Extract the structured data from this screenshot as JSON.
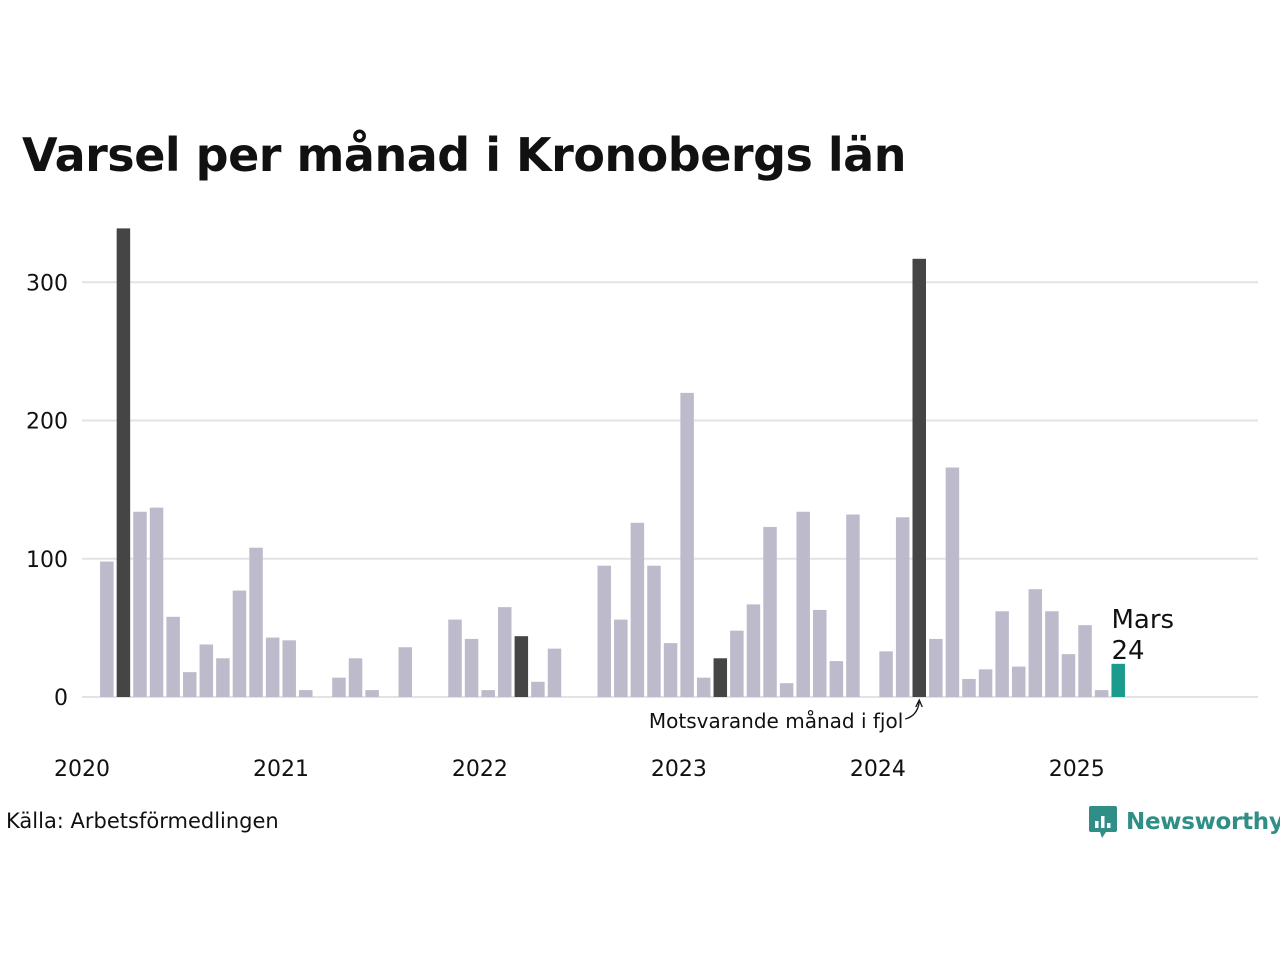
{
  "title": "Varsel per månad i Kronobergs län",
  "source": "Källa: Arbetsförmedlingen",
  "brand": "Newsworthy",
  "colors": {
    "normal": "#bdbbcb",
    "same_month": "#454545",
    "current": "#1a9b8c",
    "grid": "#e3e3e3",
    "brand": "#2f8f86"
  },
  "chart_data": {
    "type": "bar",
    "title": "Varsel per månad i Kronobergs län",
    "ylim": [
      0,
      340
    ],
    "yticks": [
      0,
      100,
      200,
      300
    ],
    "x_start": "2020-01",
    "xticks": [
      "2020",
      "2021",
      "2022",
      "2023",
      "2024",
      "2025"
    ],
    "grid": true,
    "highlight_months": [
      "2020-03",
      "2022-03",
      "2023-03",
      "2024-03"
    ],
    "current_month": "2025-03",
    "months": [
      "2020-01",
      "2020-02",
      "2020-03",
      "2020-04",
      "2020-05",
      "2020-06",
      "2020-07",
      "2020-08",
      "2020-09",
      "2020-10",
      "2020-11",
      "2020-12",
      "2021-01",
      "2021-02",
      "2021-03",
      "2021-04",
      "2021-05",
      "2021-06",
      "2021-07",
      "2021-08",
      "2021-09",
      "2021-10",
      "2021-11",
      "2021-12",
      "2022-01",
      "2022-02",
      "2022-03",
      "2022-04",
      "2022-05",
      "2022-06",
      "2022-07",
      "2022-08",
      "2022-09",
      "2022-10",
      "2022-11",
      "2022-12",
      "2023-01",
      "2023-02",
      "2023-03",
      "2023-04",
      "2023-05",
      "2023-06",
      "2023-07",
      "2023-08",
      "2023-09",
      "2023-10",
      "2023-11",
      "2023-12",
      "2024-01",
      "2024-02",
      "2024-03",
      "2024-04",
      "2024-05",
      "2024-06",
      "2024-07",
      "2024-08",
      "2024-09",
      "2024-10",
      "2024-11",
      "2024-12",
      "2025-01",
      "2025-02",
      "2025-03"
    ],
    "values": [
      0,
      98,
      339,
      134,
      137,
      58,
      18,
      38,
      28,
      77,
      108,
      43,
      41,
      5,
      0,
      14,
      28,
      5,
      0,
      36,
      0,
      0,
      56,
      42,
      5,
      65,
      44,
      11,
      35,
      0,
      0,
      95,
      56,
      126,
      95,
      39,
      220,
      14,
      28,
      48,
      67,
      123,
      10,
      134,
      63,
      26,
      132,
      0,
      33,
      130,
      317,
      42,
      166,
      13,
      20,
      62,
      22,
      78,
      62,
      31,
      52,
      5,
      24
    ],
    "annotations": {
      "current_label": "Mars",
      "current_value": "24",
      "last_year_label": "Motsvarande månad i fjol"
    }
  }
}
